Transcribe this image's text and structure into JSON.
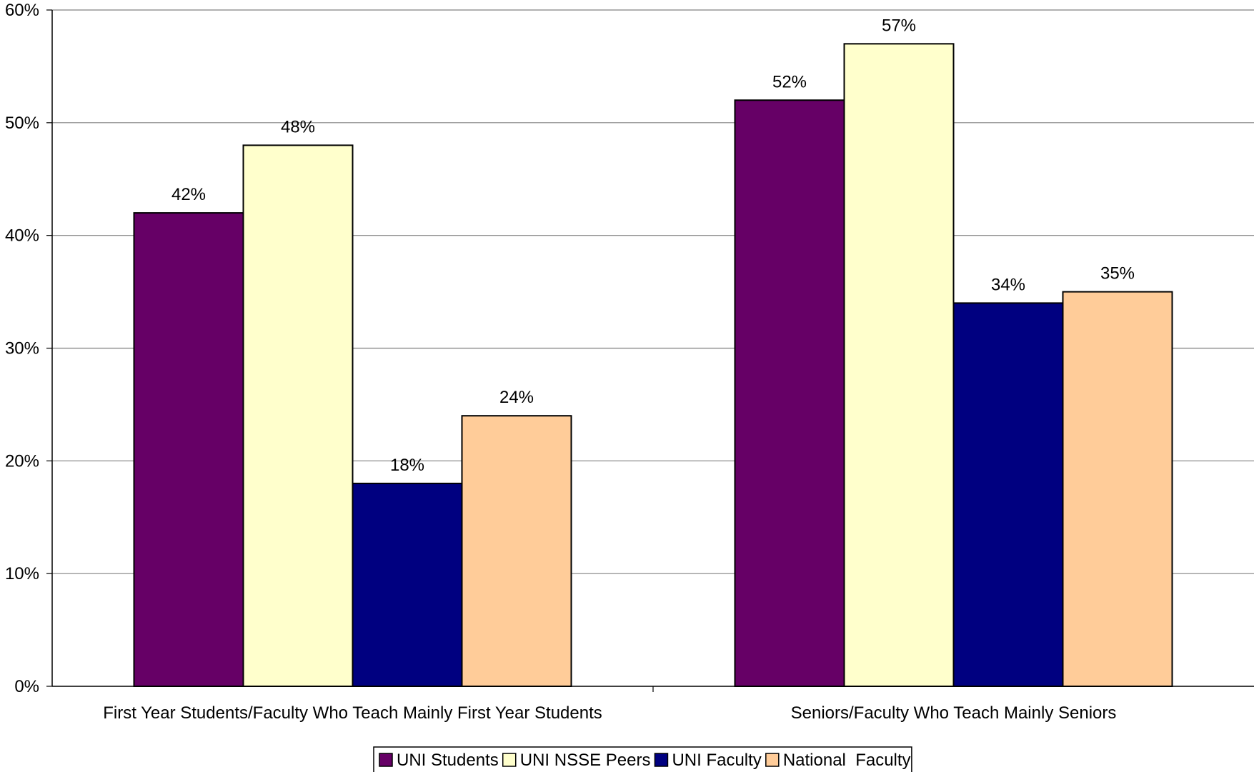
{
  "chart_data": {
    "type": "bar",
    "categories": [
      "First Year Students/Faculty Who Teach Mainly First Year Students",
      "Seniors/Faculty Who Teach Mainly Seniors"
    ],
    "series": [
      {
        "name": "UNI Students",
        "values": [
          42,
          52
        ],
        "labels": [
          "42%",
          "52%"
        ],
        "color": "#660066"
      },
      {
        "name": "UNI NSSE Peers",
        "values": [
          48,
          57
        ],
        "labels": [
          "48%",
          "57%"
        ],
        "color": "#FFFFCC"
      },
      {
        "name": "UNI Faculty",
        "values": [
          18,
          34
        ],
        "labels": [
          "18%",
          "34%"
        ],
        "color": "#000080"
      },
      {
        "name": "National  Faculty",
        "values": [
          24,
          35
        ],
        "labels": [
          "24%",
          "35%"
        ],
        "color": "#FFCC99"
      }
    ],
    "y_ticks": [
      0,
      10,
      20,
      30,
      40,
      50,
      60
    ],
    "y_tick_labels": [
      "0%",
      "10%",
      "20%",
      "30%",
      "40%",
      "50%",
      "60%"
    ],
    "ylim": [
      0,
      60
    ],
    "grid": true,
    "legend_position": "bottom"
  }
}
